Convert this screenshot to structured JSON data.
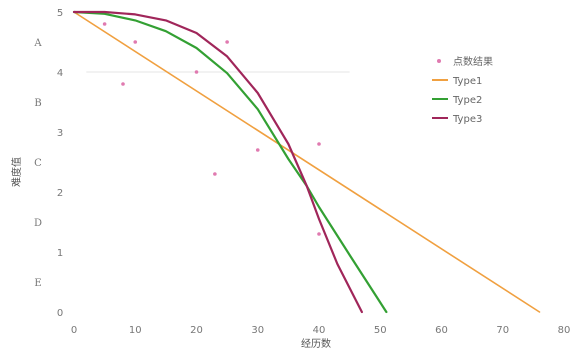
{
  "chart_data": {
    "type": "line",
    "title": "",
    "xlabel": "经历数",
    "ylabel": "难度值",
    "xlim": [
      0,
      80
    ],
    "ylim": [
      0,
      5
    ],
    "x_ticks": [
      "0",
      "10",
      "20",
      "30",
      "40",
      "50",
      "60",
      "70",
      "80"
    ],
    "y_ticks": [
      "0",
      "1",
      "2",
      "3",
      "4",
      "5"
    ],
    "band_labels": [
      "A",
      "B",
      "C",
      "D",
      "E"
    ],
    "band_values": [
      4.5,
      3.5,
      2.5,
      1.5,
      0.5
    ],
    "grid": false,
    "legend_position": "right",
    "series": [
      {
        "name": "Type1",
        "color": "#f0a040",
        "x": [
          0,
          76
        ],
        "y": [
          5,
          0
        ]
      },
      {
        "name": "Type2",
        "color": "#33a033",
        "x": [
          0,
          5,
          10,
          15,
          20,
          25,
          30,
          35,
          38,
          40,
          45,
          51
        ],
        "y": [
          5,
          4.97,
          4.86,
          4.68,
          4.4,
          3.98,
          3.38,
          2.55,
          2.1,
          1.75,
          0.95,
          0
        ]
      },
      {
        "name": "Type3",
        "color": "#a0265a",
        "x": [
          0,
          5,
          10,
          15,
          20,
          25,
          30,
          35,
          38,
          40,
          43,
          47
        ],
        "y": [
          5,
          5.0,
          4.96,
          4.86,
          4.65,
          4.26,
          3.65,
          2.8,
          2.1,
          1.55,
          0.8,
          0
        ]
      },
      {
        "name": "点数结果",
        "color": "#e07ab0",
        "type": "scatter",
        "x": [
          5,
          8,
          10,
          20,
          25,
          30,
          23,
          40,
          40
        ],
        "y": [
          4.8,
          3.8,
          4.5,
          4.0,
          4.5,
          2.7,
          2.3,
          2.8,
          1.3
        ]
      }
    ]
  }
}
